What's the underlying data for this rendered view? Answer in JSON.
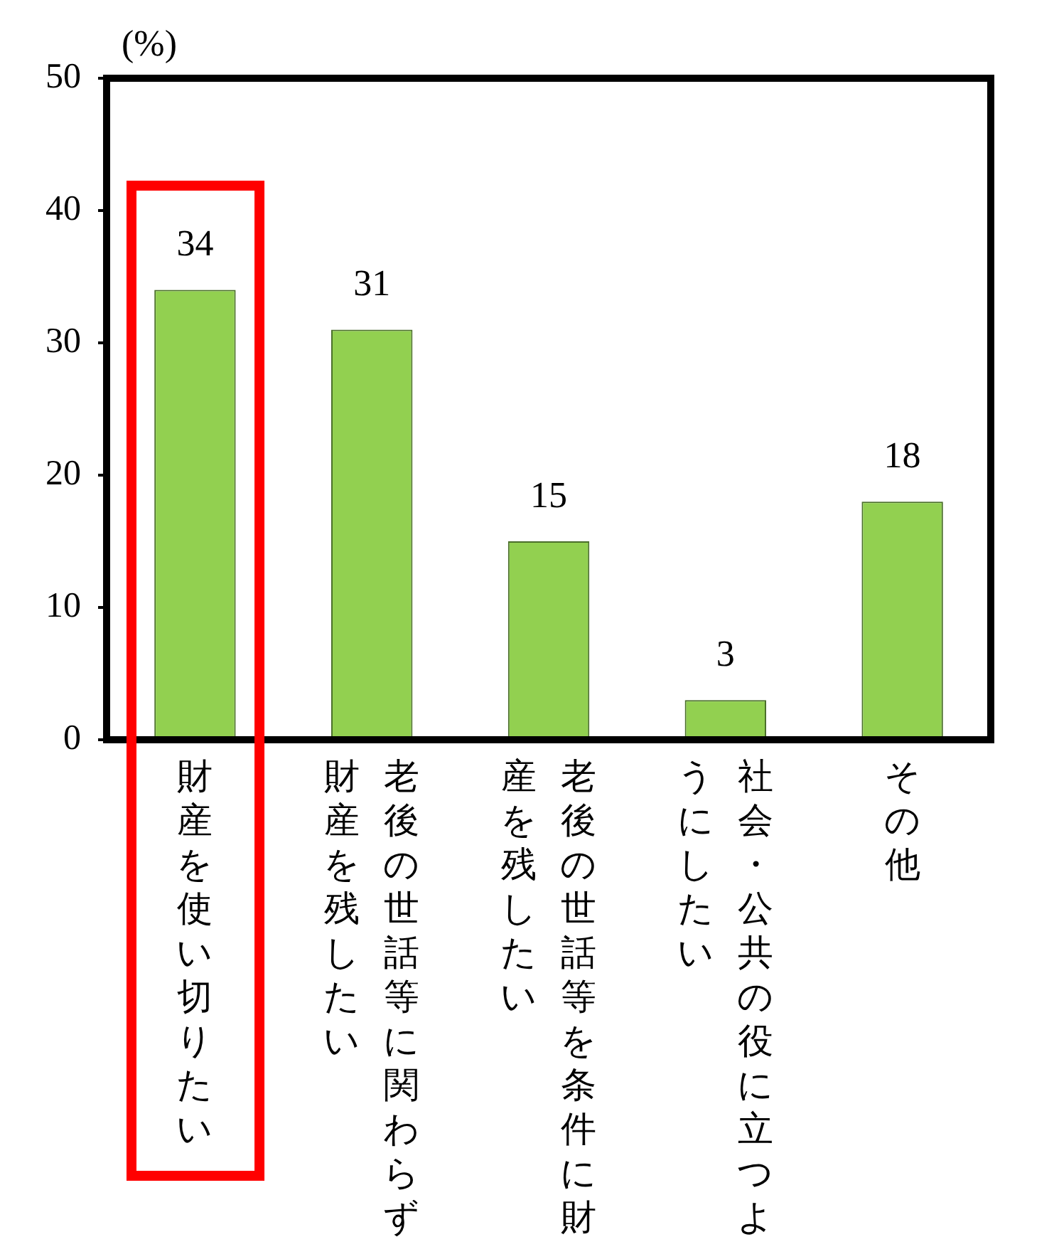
{
  "chart_data": {
    "type": "bar",
    "ylabel": "(%)",
    "categories": [
      "財産を使い切りたい",
      "老後の世話等に関わらず財産を残したい",
      "老後の世話等を条件に財産を残したい",
      "社会・公共の役に立つようにしたい",
      "その他"
    ],
    "values": [
      34,
      31,
      15,
      3,
      18
    ],
    "color": "#92d050",
    "ylim": [
      0,
      50
    ],
    "yticks": [
      0,
      10,
      20,
      30,
      40,
      50
    ],
    "data_labels": true
  }
}
